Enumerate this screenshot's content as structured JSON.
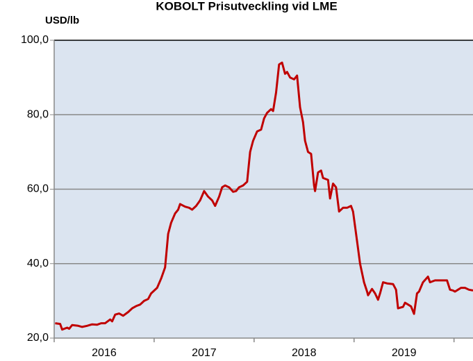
{
  "chart_data": {
    "type": "line",
    "title": "KOBOLT  Prisutveckling vid LME",
    "y_label": "USD/lb",
    "year_labels": [
      "2016",
      "2017",
      "2018",
      "2019"
    ],
    "xlim": [
      2016,
      2020.19
    ],
    "xticks": [
      2016,
      2017,
      2018,
      2019,
      2020
    ],
    "ylim": [
      20,
      100
    ],
    "yticks": [
      {
        "value": 20,
        "label": "20,0"
      },
      {
        "value": 40,
        "label": "40,0"
      },
      {
        "value": 60,
        "label": "60,0"
      },
      {
        "value": 80,
        "label": "80,0"
      },
      {
        "value": 100,
        "label": "100,0"
      }
    ],
    "grid": true,
    "x": [
      2016.01,
      2016.06,
      2016.08,
      2016.13,
      2016.15,
      2016.18,
      2016.24,
      2016.28,
      2016.33,
      2016.38,
      2016.43,
      2016.47,
      2016.51,
      2016.56,
      2016.58,
      2016.61,
      2016.65,
      2016.69,
      2016.74,
      2016.78,
      2016.82,
      2016.86,
      2016.9,
      2016.94,
      2016.97,
      2017.03,
      2017.07,
      2017.11,
      2017.14,
      2017.17,
      2017.21,
      2017.24,
      2017.26,
      2017.31,
      2017.35,
      2017.38,
      2017.42,
      2017.46,
      2017.5,
      2017.54,
      2017.58,
      2017.61,
      2017.65,
      2017.68,
      2017.71,
      2017.75,
      2017.79,
      2017.82,
      2017.85,
      2017.89,
      2017.93,
      2017.96,
      2017.99,
      2018.03,
      2018.07,
      2018.1,
      2018.13,
      2018.17,
      2018.19,
      2018.22,
      2018.25,
      2018.28,
      2018.31,
      2018.33,
      2018.36,
      2018.4,
      2018.43,
      2018.46,
      2018.49,
      2018.51,
      2018.54,
      2018.57,
      2018.6,
      2018.61,
      2018.64,
      2018.67,
      2018.69,
      2018.74,
      2018.76,
      2018.79,
      2018.82,
      2018.85,
      2018.89,
      2018.93,
      2018.97,
      2018.99,
      2019.03,
      2019.06,
      2019.1,
      2019.13,
      2019.14,
      2019.18,
      2019.21,
      2019.24,
      2019.26,
      2019.29,
      2019.33,
      2019.39,
      2019.42,
      2019.44,
      2019.49,
      2019.51,
      2019.54,
      2019.57,
      2019.6,
      2019.63,
      2019.65,
      2019.69,
      2019.74,
      2019.76,
      2019.81,
      2019.9,
      2019.93,
      2019.96,
      2019.99,
      2020.01,
      2020.04,
      2020.07,
      2020.11,
      2020.15,
      2020.19
    ],
    "series": [
      {
        "name": "Kobolt",
        "color": "#c00000",
        "values": [
          24,
          23.8,
          22.3,
          22.8,
          22.5,
          23.5,
          23.3,
          23,
          23.3,
          23.7,
          23.6,
          24,
          24,
          25,
          24.5,
          26.3,
          26.6,
          26,
          27,
          28,
          28.6,
          29,
          30,
          30.5,
          32,
          33.5,
          36,
          39,
          48,
          51,
          53.5,
          54.5,
          56,
          55.3,
          55,
          54.5,
          55.5,
          57,
          59.5,
          58,
          57,
          55.5,
          58,
          60.5,
          61,
          60.5,
          59.3,
          59.5,
          60.5,
          61,
          62,
          70,
          73,
          75.5,
          76,
          79,
          80.5,
          81.5,
          81,
          86,
          93.5,
          94,
          91,
          91.5,
          90,
          89.5,
          90.5,
          82,
          78,
          73,
          70,
          69.5,
          61,
          59.5,
          64.5,
          65,
          63,
          62.5,
          57.5,
          61.5,
          60.5,
          54,
          55,
          55,
          55.5,
          54,
          46,
          40,
          35,
          32.5,
          31.5,
          33.2,
          32,
          30.3,
          32,
          35,
          34.7,
          34.5,
          33,
          28,
          28.4,
          29.5,
          29,
          28.5,
          26.5,
          32,
          32.5,
          35,
          36.5,
          35,
          35.5,
          35.5,
          35.5,
          33,
          32.8,
          32.5,
          33,
          33.5,
          33.5,
          33,
          32.8
        ]
      }
    ]
  }
}
